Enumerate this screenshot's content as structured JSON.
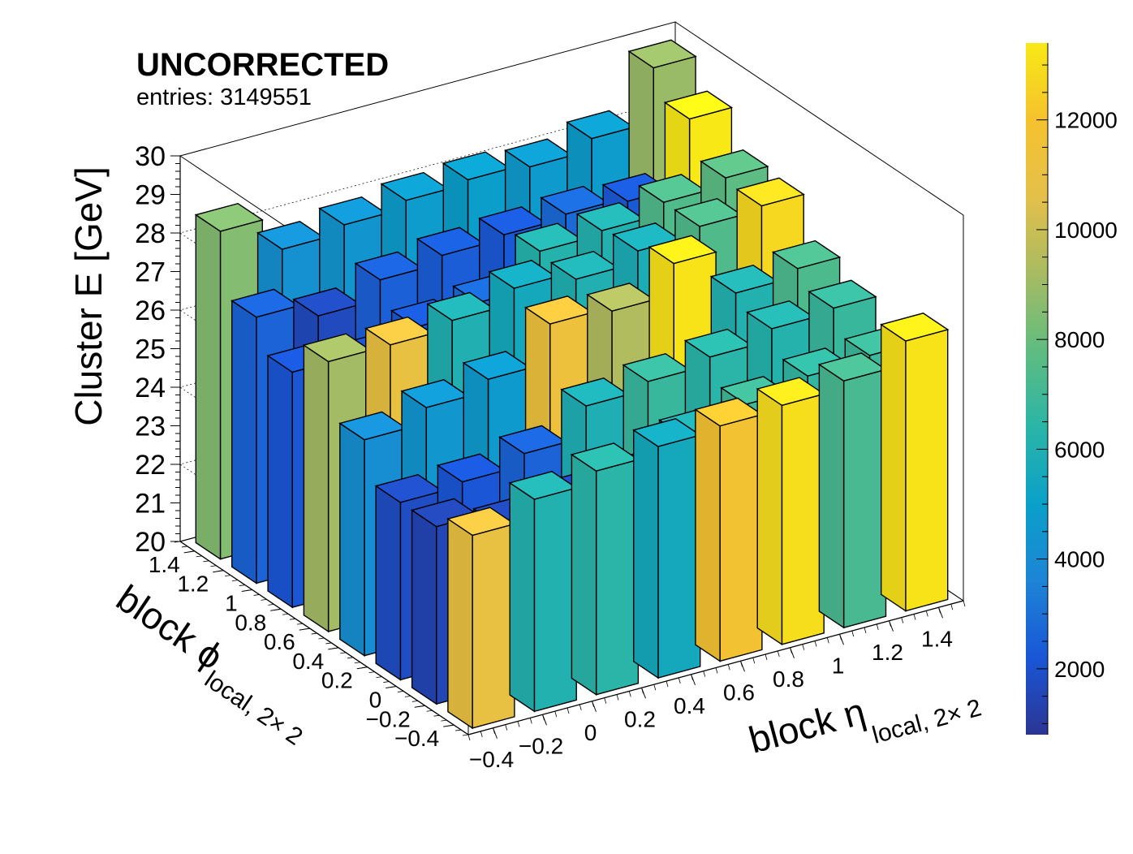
{
  "header": {
    "title": "UNCORRECTED",
    "subtitle": "entries: 3149551"
  },
  "colors": {
    "bar_edge": "#000000",
    "axis": "#000000",
    "palette": [
      "#2b3593",
      "#1a56d6",
      "#1d84d6",
      "#0aa0c9",
      "#2ab5a8",
      "#60bc80",
      "#a8bb62",
      "#e4c04a",
      "#f5c22e",
      "#f8e916"
    ]
  },
  "chart_data": {
    "type": "lego3d",
    "zlabel": "Cluster E  [GeV]",
    "xlabel": "block η",
    "xlabel_sub": "local, 2× 2",
    "ylabel": "block ϕ",
    "ylabel_sub": "local, 2× 2",
    "xlim": [
      -0.5,
      1.5
    ],
    "ylim": [
      -0.5,
      1.5
    ],
    "zlim": [
      20,
      30
    ],
    "x_ticks": [
      "−0.4",
      "−0.2",
      "0",
      "0.2",
      "0.4",
      "0.6",
      "0.8",
      "1",
      "1.2",
      "1.4"
    ],
    "y_ticks": [
      "−0.4",
      "−0.2",
      "0",
      "0.2",
      "0.4",
      "0.6",
      "0.8",
      "1",
      "1.2",
      "1.4"
    ],
    "z_ticks": [
      "20",
      "21",
      "22",
      "23",
      "24",
      "25",
      "26",
      "27",
      "28",
      "29",
      "30"
    ],
    "color_ticks": [
      "2000",
      "4000",
      "6000",
      "8000",
      "10000",
      "12000"
    ],
    "color_range": [
      800,
      13400
    ],
    "bins_per_axis": 8,
    "row_y": [
      -0.375,
      -0.125,
      0.125,
      0.375,
      0.625,
      0.875,
      1.125,
      1.375
    ],
    "col_x": [
      -0.375,
      -0.125,
      0.125,
      0.375,
      0.625,
      0.875,
      1.125,
      1.375
    ],
    "counts": [
      [
        11000,
        6100,
        6400,
        5500,
        11800,
        13000,
        7200,
        13200
      ],
      [
        1500,
        1600,
        1700,
        2200,
        6000,
        7000,
        6600,
        6900
      ],
      [
        1800,
        2200,
        2600,
        5900,
        6800,
        6400,
        6200,
        6800
      ],
      [
        4100,
        4500,
        4700,
        11300,
        9400,
        13200,
        6100,
        7300
      ],
      [
        9100,
        11000,
        6000,
        5500,
        6000,
        5800,
        7400,
        12800
      ],
      [
        2200,
        2000,
        2300,
        2800,
        6200,
        6100,
        7400,
        7700
      ],
      [
        2600,
        1700,
        2500,
        2400,
        2300,
        2800,
        2300,
        13500
      ],
      [
        8500,
        4200,
        4400,
        4800,
        4900,
        4700,
        4800,
        8900
      ]
    ],
    "z_low": [
      [
        20.0,
        20.0,
        20.0,
        20.0,
        20.0,
        20.0,
        20.0,
        20.0
      ],
      [
        20.0,
        20.0,
        20.0,
        20.0,
        20.0,
        20.0,
        20.0,
        20.0
      ],
      [
        20.0,
        20.0,
        20.0,
        20.0,
        20.0,
        20.0,
        20.0,
        20.0
      ],
      [
        20.0,
        20.0,
        20.0,
        20.0,
        20.0,
        20.0,
        20.0,
        20.0
      ],
      [
        20.0,
        20.0,
        20.0,
        20.0,
        20.0,
        20.0,
        20.0,
        20.0
      ],
      [
        20.0,
        20.0,
        20.0,
        20.0,
        20.0,
        20.0,
        20.0,
        20.0
      ],
      [
        20.0,
        20.0,
        20.0,
        20.0,
        20.0,
        20.0,
        20.0,
        20.0
      ],
      [
        20.0,
        20.0,
        20.0,
        20.0,
        20.0,
        20.0,
        20.0,
        20.0
      ]
    ],
    "z_high": [
      [
        25.0,
        25.5,
        25.8,
        26.0,
        26.1,
        26.2,
        26.4,
        27.0
      ],
      [
        24.6,
        24.2,
        24.4,
        24.5,
        25.2,
        25.6,
        25.9,
        26.0
      ],
      [
        24.6,
        24.7,
        25.0,
        25.8,
        26.0,
        26.2,
        26.5,
        26.6
      ],
      [
        25.6,
        26.0,
        26.3,
        27.3,
        27.2,
        28.0,
        26.8,
        27.0
      ],
      [
        27.0,
        27.0,
        27.2,
        27.6,
        27.4,
        27.7,
        27.9,
        28.0
      ],
      [
        26.1,
        25.9,
        26.4,
        26.6,
        27.5,
        27.6,
        27.9,
        28.1
      ],
      [
        26.9,
        26.5,
        27.0,
        27.2,
        27.3,
        27.4,
        27.3,
        29.0
      ],
      [
        28.5,
        27.6,
        27.8,
        28.0,
        28.1,
        28.0,
        28.3,
        29.7
      ]
    ]
  }
}
